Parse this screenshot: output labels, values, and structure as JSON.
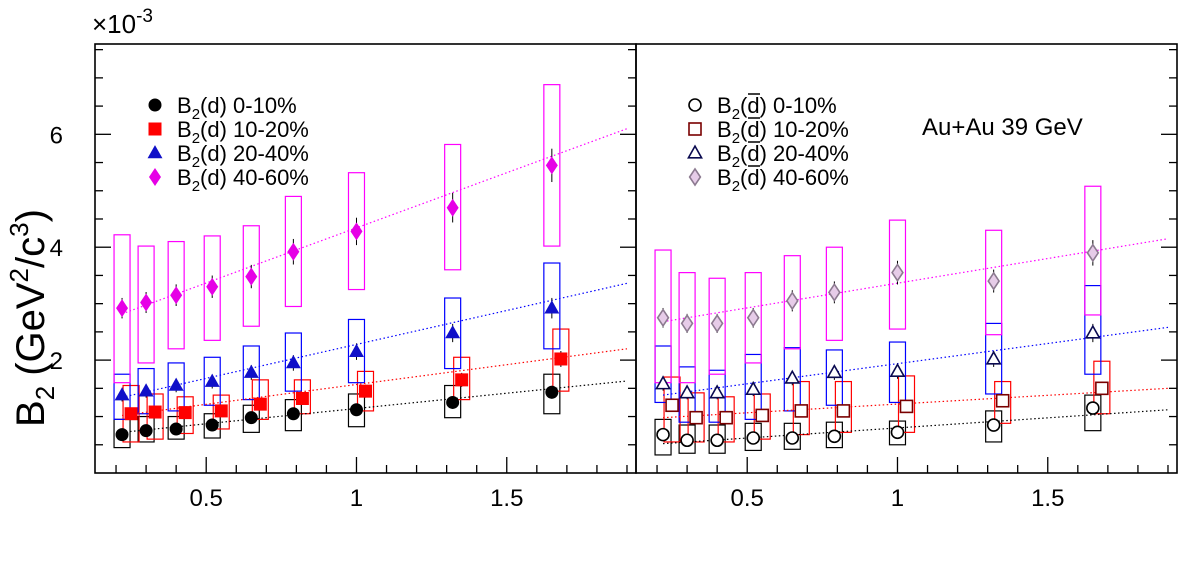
{
  "figure": {
    "exponent": "×10",
    "exponent_power": "-3",
    "y_axis_label": "B",
    "y_axis_sub": "2",
    "y_axis_unit": "(GeV",
    "y_axis_unit_sup": "2",
    "y_axis_unit_end": "/c",
    "y_axis_unit_sup2": "3",
    "y_axis_unit_close": ")"
  },
  "chart_data": [
    {
      "type": "scatter",
      "panel": "left",
      "annotation": "",
      "xlim": [
        0.13,
        1.93
      ],
      "ylim": [
        0,
        7.6
      ],
      "x_ticks": [
        0.5,
        1,
        1.5
      ],
      "x_tick_labels": [
        "0.5",
        "1",
        "1.5"
      ],
      "y_ticks": [
        2,
        4,
        6
      ],
      "y_tick_labels": [
        "2",
        "4",
        "6"
      ],
      "legend_position": "top-left",
      "series": [
        {
          "name": "B2(d) 0-10%",
          "legend_prefix": "B",
          "legend_sub": "2",
          "legend_par": "(d)",
          "legend_suffix": "0-10%",
          "marker": "circle",
          "filled": true,
          "color": "#000000",
          "band_color": "#000000",
          "fit_color": "#000000",
          "x": [
            0.22,
            0.3,
            0.4,
            0.52,
            0.65,
            0.79,
            1.0,
            1.32,
            1.65
          ],
          "y": [
            0.68,
            0.75,
            0.78,
            0.85,
            0.98,
            1.05,
            1.12,
            1.25,
            1.43
          ],
          "sys_low": [
            0.45,
            0.55,
            0.6,
            0.62,
            0.72,
            0.75,
            0.82,
            0.98,
            1.05
          ],
          "sys_high": [
            0.95,
            1.0,
            1.0,
            1.05,
            1.2,
            1.3,
            1.4,
            1.55,
            1.75
          ],
          "fit": [
            [
              0.22,
              0.72
            ],
            [
              1.9,
              1.63
            ]
          ]
        },
        {
          "name": "B2(d) 10-20%",
          "legend_prefix": "B",
          "legend_sub": "2",
          "legend_par": "(d)",
          "legend_suffix": "10-20%",
          "marker": "square",
          "filled": true,
          "color": "#ff0000",
          "band_color": "#ff0000",
          "fit_color": "#ff0000",
          "x": [
            0.25,
            0.33,
            0.43,
            0.55,
            0.68,
            0.82,
            1.03,
            1.35,
            1.68
          ],
          "y": [
            1.05,
            1.08,
            1.07,
            1.1,
            1.22,
            1.32,
            1.45,
            1.65,
            2.02
          ],
          "sys_low": [
            0.55,
            0.6,
            0.7,
            0.78,
            0.95,
            1.05,
            1.1,
            1.3,
            1.45
          ],
          "sys_high": [
            1.55,
            1.4,
            1.35,
            1.38,
            1.65,
            1.65,
            1.8,
            2.05,
            2.55
          ],
          "fit": [
            [
              0.22,
              1.02
            ],
            [
              1.9,
              2.2
            ]
          ]
        },
        {
          "name": "B2(d) 20-40%",
          "legend_prefix": "B",
          "legend_sub": "2",
          "legend_par": "(d)",
          "legend_suffix": "20-40%",
          "marker": "triangle",
          "filled": true,
          "color": "#1010c8",
          "band_color": "#0000ff",
          "fit_color": "#0000ff",
          "x": [
            0.22,
            0.3,
            0.4,
            0.52,
            0.65,
            0.79,
            1.0,
            1.32,
            1.65
          ],
          "y": [
            1.38,
            1.45,
            1.55,
            1.62,
            1.78,
            1.95,
            2.15,
            2.48,
            2.92
          ],
          "sys_low": [
            0.95,
            1.05,
            1.1,
            1.2,
            1.3,
            1.45,
            1.6,
            1.85,
            2.2
          ],
          "sys_high": [
            1.75,
            1.85,
            1.95,
            2.05,
            2.25,
            2.48,
            2.72,
            3.1,
            3.72
          ],
          "fit": [
            [
              0.22,
              1.34
            ],
            [
              1.9,
              3.36
            ]
          ]
        },
        {
          "name": "B2(d) 40-60%",
          "legend_prefix": "B",
          "legend_sub": "2",
          "legend_par": "(d)",
          "legend_suffix": "40-60%",
          "marker": "diamond",
          "filled": true,
          "color": "#e600e6",
          "band_color": "#ff00ff",
          "fit_color": "#ff00ff",
          "x": [
            0.22,
            0.3,
            0.4,
            0.52,
            0.65,
            0.79,
            1.0,
            1.32,
            1.65
          ],
          "y": [
            2.92,
            3.02,
            3.15,
            3.3,
            3.48,
            3.92,
            4.28,
            4.7,
            5.45
          ],
          "sys_low": [
            1.6,
            1.95,
            2.2,
            2.35,
            2.6,
            2.95,
            3.25,
            3.6,
            4.02
          ],
          "sys_high": [
            4.22,
            4.02,
            4.1,
            4.2,
            4.38,
            4.9,
            5.32,
            5.82,
            6.88
          ],
          "fit": [
            [
              0.22,
              2.82
            ],
            [
              1.9,
              6.1
            ]
          ]
        }
      ]
    },
    {
      "type": "scatter",
      "panel": "right",
      "annotation": "Au+Au 39 GeV",
      "xlim": [
        0.13,
        1.93
      ],
      "ylim": [
        0,
        7.6
      ],
      "x_ticks": [
        0.5,
        1,
        1.5
      ],
      "x_tick_labels": [
        "0.5",
        "1",
        "1.5"
      ],
      "y_ticks": [
        2,
        4,
        6
      ],
      "y_tick_labels": [
        "",
        "",
        ""
      ],
      "legend_position": "top-left",
      "series": [
        {
          "name": "B2(d̄) 0-10%",
          "legend_prefix": "B",
          "legend_sub": "2",
          "legend_par": "(d)",
          "legend_bar": true,
          "legend_suffix": "0-10%",
          "marker": "circle",
          "filled": false,
          "color": "#000000",
          "band_color": "#000000",
          "fit_color": "#000000",
          "x": [
            0.22,
            0.3,
            0.4,
            0.52,
            0.65,
            0.79,
            1.0,
            1.32,
            1.65
          ],
          "y": [
            0.68,
            0.58,
            0.58,
            0.62,
            0.62,
            0.65,
            0.72,
            0.85,
            1.15
          ],
          "sys_low": [
            0.32,
            0.35,
            0.35,
            0.4,
            0.42,
            0.45,
            0.5,
            0.55,
            0.75
          ],
          "sys_high": [
            0.95,
            0.85,
            0.85,
            0.88,
            0.88,
            0.9,
            0.92,
            1.1,
            1.38
          ],
          "fit": [
            [
              0.22,
              0.52
            ],
            [
              1.9,
              1.12
            ]
          ]
        },
        {
          "name": "B2(d̄) 10-20%",
          "legend_prefix": "B",
          "legend_sub": "2",
          "legend_par": "(d)",
          "legend_bar": true,
          "legend_suffix": "10-20%",
          "marker": "square",
          "filled": false,
          "color": "#7a0000",
          "band_color": "#ff0000",
          "fit_color": "#ff0000",
          "x": [
            0.25,
            0.33,
            0.43,
            0.55,
            0.68,
            0.82,
            1.03,
            1.35,
            1.68
          ],
          "y": [
            1.2,
            0.98,
            0.98,
            1.02,
            1.1,
            1.1,
            1.18,
            1.28,
            1.5
          ],
          "sys_low": [
            0.55,
            0.55,
            0.55,
            0.6,
            0.68,
            0.72,
            0.72,
            0.88,
            1.05
          ],
          "sys_high": [
            1.7,
            1.42,
            1.35,
            1.4,
            1.62,
            1.62,
            1.72,
            1.62,
            1.98
          ],
          "fit": [
            [
              0.22,
              0.98
            ],
            [
              1.9,
              1.5
            ]
          ]
        },
        {
          "name": "B2(d̄) 20-40%",
          "legend_prefix": "B",
          "legend_sub": "2",
          "legend_par": "(d)",
          "legend_bar": true,
          "legend_suffix": "20-40%",
          "marker": "triangle",
          "filled": false,
          "color": "#0a0a50",
          "band_color": "#0000ff",
          "fit_color": "#0000ff",
          "x": [
            0.22,
            0.3,
            0.4,
            0.52,
            0.65,
            0.79,
            1.0,
            1.32,
            1.65
          ],
          "y": [
            1.58,
            1.42,
            1.42,
            1.48,
            1.68,
            1.78,
            1.8,
            2.02,
            2.48
          ],
          "sys_low": [
            1.25,
            0.9,
            0.9,
            0.95,
            1.1,
            1.2,
            1.25,
            1.4,
            1.75
          ],
          "sys_high": [
            2.25,
            1.88,
            1.82,
            2.1,
            2.22,
            2.18,
            2.32,
            2.65,
            3.32
          ],
          "fit": [
            [
              0.22,
              1.38
            ],
            [
              1.9,
              2.58
            ]
          ]
        },
        {
          "name": "B2(d̄) 40-60%",
          "legend_prefix": "B",
          "legend_sub": "2",
          "legend_par": "(d)",
          "legend_bar": true,
          "legend_suffix": "40-60%",
          "marker": "diamond",
          "filled": false,
          "color": "#8c7a90",
          "fill": "#e6cce8",
          "band_color": "#ff00ff",
          "fit_color": "#ff00ff",
          "x": [
            0.22,
            0.3,
            0.4,
            0.52,
            0.65,
            0.79,
            1.0,
            1.32,
            1.65
          ],
          "y": [
            2.75,
            2.65,
            2.65,
            2.75,
            3.05,
            3.2,
            3.55,
            3.4,
            3.9
          ],
          "sys_low": [
            1.6,
            1.6,
            1.75,
            1.95,
            2.2,
            2.35,
            2.55,
            2.45,
            2.8
          ],
          "sys_high": [
            3.95,
            3.55,
            3.45,
            3.55,
            3.85,
            4.0,
            4.48,
            4.3,
            5.08
          ],
          "fit": [
            [
              0.22,
              2.68
            ],
            [
              1.9,
              4.15
            ]
          ]
        }
      ]
    }
  ]
}
